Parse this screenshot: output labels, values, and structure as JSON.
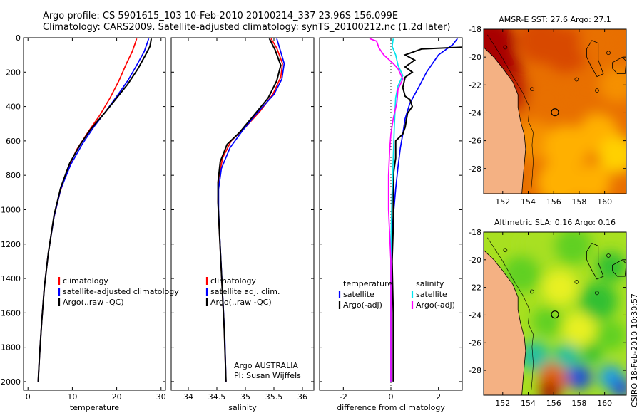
{
  "header": {
    "line1": "Argo profile: CS 5901615_103 10-Feb-2010 20100214_337 23.96S 156.099E",
    "line2": "Climatology: CARS2009. Satellite-adjusted climatology: synTS_20100212.nc (1.2d later)"
  },
  "side_credit": "CSIRO 18-Feb-2010 10:30:57",
  "colors": {
    "climatology": "#ff0000",
    "satellite": "#0000ff",
    "argo": "#000000",
    "cyan": "#00e5ee",
    "magenta": "#ff00ff",
    "land": "#f4b183"
  },
  "chart_data": [
    {
      "type": "line",
      "xlabel": "temperature",
      "xlim": [
        -1,
        31
      ],
      "ylim": [
        2050,
        0
      ],
      "xticks": [
        0,
        10,
        20,
        30
      ],
      "yticks": [
        0,
        200,
        400,
        600,
        800,
        1000,
        1200,
        1400,
        1600,
        1800,
        2000
      ],
      "legend": {
        "items": [
          "climatology",
          "satellite-adjusted climatology",
          "Argo(..raw -QC)"
        ]
      },
      "series": [
        {
          "name": "climatology",
          "color": "#ff0000",
          "points": [
            [
              24.5,
              5
            ],
            [
              24.2,
              30
            ],
            [
              23.5,
              80
            ],
            [
              22.2,
              150
            ],
            [
              20.5,
              250
            ],
            [
              18.5,
              350
            ],
            [
              16.2,
              450
            ],
            [
              13.5,
              550
            ],
            [
              11.0,
              650
            ],
            [
              9.0,
              760
            ],
            [
              7.2,
              900
            ],
            [
              5.8,
              1050
            ],
            [
              4.6,
              1250
            ],
            [
              3.7,
              1450
            ],
            [
              3.1,
              1650
            ],
            [
              2.6,
              1850
            ],
            [
              2.3,
              2000
            ]
          ]
        },
        {
          "name": "satellite-adjusted climatology",
          "color": "#0000ff",
          "points": [
            [
              27.2,
              5
            ],
            [
              26.9,
              30
            ],
            [
              26.2,
              80
            ],
            [
              24.5,
              160
            ],
            [
              22.5,
              250
            ],
            [
              20.3,
              330
            ],
            [
              17.5,
              430
            ],
            [
              14.8,
              520
            ],
            [
              12.2,
              620
            ],
            [
              9.6,
              740
            ],
            [
              7.4,
              880
            ],
            [
              5.9,
              1040
            ],
            [
              4.6,
              1250
            ],
            [
              3.7,
              1450
            ],
            [
              3.1,
              1650
            ],
            [
              2.6,
              1850
            ],
            [
              2.3,
              2000
            ]
          ]
        },
        {
          "name": "Argo(..raw -QC)",
          "color": "#000000",
          "points": [
            [
              27.8,
              5
            ],
            [
              27.7,
              20
            ],
            [
              27.5,
              50
            ],
            [
              26.5,
              100
            ],
            [
              24.8,
              180
            ],
            [
              22.5,
              270
            ],
            [
              20.0,
              350
            ],
            [
              17.2,
              440
            ],
            [
              14.2,
              530
            ],
            [
              11.8,
              620
            ],
            [
              9.4,
              730
            ],
            [
              7.4,
              870
            ],
            [
              5.9,
              1030
            ],
            [
              4.6,
              1250
            ],
            [
              3.7,
              1450
            ],
            [
              3.1,
              1650
            ],
            [
              2.6,
              1850
            ],
            [
              2.3,
              2000
            ]
          ]
        }
      ]
    },
    {
      "type": "line",
      "xlabel": "salinity",
      "xlim": [
        33.7,
        36.2
      ],
      "ylim": [
        2050,
        0
      ],
      "xticks": [
        34,
        34.5,
        35,
        35.5,
        36
      ],
      "legend": {
        "items": [
          "climatology",
          "satellite adj. clim.",
          "Argo(..raw -QC)"
        ]
      },
      "annotation": [
        "Argo AUSTRALIA",
        "PI: Susan Wijffels"
      ],
      "series": [
        {
          "name": "climatology",
          "color": "#ff0000",
          "points": [
            [
              35.45,
              5
            ],
            [
              35.55,
              60
            ],
            [
              35.65,
              150
            ],
            [
              35.62,
              230
            ],
            [
              35.48,
              330
            ],
            [
              35.25,
              430
            ],
            [
              35.0,
              520
            ],
            [
              34.75,
              600
            ],
            [
              34.6,
              700
            ],
            [
              34.53,
              820
            ],
            [
              34.52,
              950
            ],
            [
              34.54,
              1100
            ],
            [
              34.57,
              1300
            ],
            [
              34.6,
              1500
            ],
            [
              34.63,
              1700
            ],
            [
              34.65,
              1900
            ],
            [
              34.66,
              2000
            ]
          ]
        },
        {
          "name": "satellite adj. clim.",
          "color": "#0000ff",
          "points": [
            [
              35.55,
              5
            ],
            [
              35.6,
              60
            ],
            [
              35.68,
              150
            ],
            [
              35.64,
              240
            ],
            [
              35.5,
              330
            ],
            [
              35.2,
              440
            ],
            [
              34.95,
              540
            ],
            [
              34.73,
              640
            ],
            [
              34.58,
              760
            ],
            [
              34.53,
              880
            ],
            [
              34.53,
              1000
            ],
            [
              34.55,
              1150
            ],
            [
              34.58,
              1350
            ],
            [
              34.61,
              1550
            ],
            [
              34.64,
              1750
            ],
            [
              34.66,
              2000
            ]
          ]
        },
        {
          "name": "Argo(..raw -QC)",
          "color": "#000000",
          "points": [
            [
              35.42,
              5
            ],
            [
              35.52,
              70
            ],
            [
              35.62,
              160
            ],
            [
              35.55,
              250
            ],
            [
              35.4,
              350
            ],
            [
              35.15,
              450
            ],
            [
              34.9,
              550
            ],
            [
              34.68,
              620
            ],
            [
              34.56,
              720
            ],
            [
              34.52,
              840
            ],
            [
              34.52,
              960
            ],
            [
              34.54,
              1100
            ],
            [
              34.57,
              1300
            ],
            [
              34.6,
              1500
            ],
            [
              34.63,
              1700
            ],
            [
              34.65,
              1900
            ],
            [
              34.66,
              2000
            ]
          ]
        }
      ]
    },
    {
      "type": "line",
      "xlabel": "difference from climatology",
      "xlim": [
        -3,
        3
      ],
      "ylim": [
        2050,
        0
      ],
      "xticks": [
        -2,
        0,
        2
      ],
      "legend": {
        "groups": [
          {
            "title": "temperature",
            "items": [
              "satellite",
              "Argo(-adj)"
            ]
          },
          {
            "title": "salinity",
            "items": [
              "satellite",
              "Argo(-adj)"
            ]
          }
        ]
      },
      "series": [
        {
          "name": "temperature satellite",
          "color": "#0000ff",
          "points": [
            [
              2.8,
              5
            ],
            [
              2.6,
              40
            ],
            [
              2.0,
              100
            ],
            [
              1.5,
              200
            ],
            [
              1.2,
              280
            ],
            [
              0.8,
              380
            ],
            [
              0.6,
              470
            ],
            [
              0.5,
              560
            ],
            [
              0.4,
              640
            ],
            [
              0.3,
              750
            ],
            [
              0.2,
              880
            ],
            [
              0.1,
              1040
            ],
            [
              0,
              1250
            ],
            [
              0,
              2000
            ]
          ]
        },
        {
          "name": "temperature Argo(-adj)",
          "color": "#000000",
          "points": [
            [
              3,
              55
            ],
            [
              1.3,
              65
            ],
            [
              0.6,
              100
            ],
            [
              1.0,
              130
            ],
            [
              0.6,
              170
            ],
            [
              0.9,
              200
            ],
            [
              0.6,
              230
            ],
            [
              0.5,
              290
            ],
            [
              0.6,
              340
            ],
            [
              0.8,
              360
            ],
            [
              0.9,
              400
            ],
            [
              0.7,
              440
            ],
            [
              0.6,
              520
            ],
            [
              0.5,
              560
            ],
            [
              0.2,
              600
            ],
            [
              0.2,
              700
            ],
            [
              0.1,
              800
            ],
            [
              0.1,
              900
            ],
            [
              0.1,
              1100
            ],
            [
              0.05,
              1300
            ],
            [
              0.1,
              1600
            ],
            [
              0.1,
              2000
            ]
          ]
        },
        {
          "name": "salinity satellite",
          "color": "#00e5ee",
          "points": [
            [
              0.1,
              5
            ],
            [
              0.05,
              50
            ],
            [
              0.2,
              100
            ],
            [
              0.3,
              160
            ],
            [
              0.5,
              220
            ],
            [
              0.3,
              280
            ],
            [
              0.2,
              350
            ],
            [
              0.15,
              500
            ],
            [
              0.1,
              700
            ],
            [
              0.05,
              900
            ],
            [
              0,
              1200
            ],
            [
              0,
              1500
            ],
            [
              0,
              2000
            ]
          ]
        },
        {
          "name": "salinity Argo(-adj)",
          "color": "#ff00ff",
          "points": [
            [
              -0.9,
              5
            ],
            [
              -0.6,
              20
            ],
            [
              -0.5,
              60
            ],
            [
              -0.3,
              100
            ],
            [
              0.1,
              150
            ],
            [
              0.3,
              180
            ],
            [
              0.5,
              240
            ],
            [
              0.3,
              300
            ],
            [
              0.25,
              380
            ],
            [
              0.1,
              470
            ],
            [
              0.0,
              560
            ],
            [
              -0.05,
              650
            ],
            [
              -0.1,
              800
            ],
            [
              -0.1,
              1000
            ],
            [
              0,
              1300
            ],
            [
              0,
              2000
            ]
          ]
        }
      ]
    },
    {
      "type": "heatmap",
      "title": "AMSR-E SST: 27.6 Argo: 27.1",
      "xlim": [
        150.5,
        161.7
      ],
      "ylim": [
        -29.8,
        -18
      ],
      "xticks": [
        152,
        154,
        156,
        158,
        160
      ],
      "yticks": [
        -18,
        -20,
        -22,
        -24,
        -26,
        -28
      ],
      "argo_position": [
        156.1,
        -23.96
      ],
      "palette": [
        "#ffd000",
        "#ffb000",
        "#f59000",
        "#e86f00",
        "#d84a00",
        "#c02000",
        "#a80000"
      ],
      "blobs": [
        [
          151,
          -19,
          6,
          2.0
        ],
        [
          151.5,
          -21,
          6,
          2.0
        ],
        [
          152.5,
          -22.5,
          5,
          1.6
        ],
        [
          155,
          -18.8,
          4,
          1.8
        ],
        [
          157,
          -19.5,
          4,
          1.8
        ],
        [
          159.5,
          -19,
          3,
          1.5
        ],
        [
          155.5,
          -23,
          3,
          1.6
        ],
        [
          158.5,
          -22.5,
          3,
          1.5
        ],
        [
          161,
          -22,
          2,
          1.4
        ],
        [
          154.5,
          -26,
          2,
          1.6
        ],
        [
          157,
          -26.5,
          1,
          1.8
        ],
        [
          159.5,
          -25.5,
          1,
          1.6
        ],
        [
          161,
          -27,
          0,
          1.5
        ],
        [
          156.5,
          -29,
          1,
          1.8
        ],
        [
          159,
          -29,
          1,
          1.5
        ]
      ]
    },
    {
      "type": "heatmap",
      "title": "Altimetric SLA: 0.16 Argo: 0.16",
      "xlim": [
        150.5,
        161.7
      ],
      "ylim": [
        -29.8,
        -18
      ],
      "xticks": [
        152,
        154,
        156,
        158,
        160
      ],
      "yticks": [
        -18,
        -20,
        -22,
        -24,
        -26,
        -28
      ],
      "argo_position": [
        156.1,
        -23.96
      ],
      "palette": [
        "#1f4fd8",
        "#20a0e0",
        "#20c0a0",
        "#30c030",
        "#60d020",
        "#a8e020",
        "#e8f020",
        "#ffc000",
        "#e06000",
        "#a00000"
      ],
      "blobs": [
        [
          155,
          -19,
          5,
          1.8
        ],
        [
          157.5,
          -19,
          4,
          1.5
        ],
        [
          160.5,
          -20.5,
          3,
          1.2
        ],
        [
          153.5,
          -21,
          4,
          1.5
        ],
        [
          156.5,
          -22,
          6,
          1.4
        ],
        [
          159.5,
          -23,
          3,
          1.5
        ],
        [
          155.5,
          -24.5,
          4,
          1.2
        ],
        [
          158,
          -25,
          6,
          1.3
        ],
        [
          160.5,
          -25.5,
          4,
          1.2
        ],
        [
          154.5,
          -27,
          2,
          1.2
        ],
        [
          156,
          -28.5,
          8,
          1.2
        ],
        [
          158,
          -28.5,
          0,
          1.0
        ],
        [
          160.5,
          -28.5,
          1,
          1.0
        ],
        [
          157,
          -27,
          2,
          1.0
        ],
        [
          161.3,
          -29.3,
          0,
          0.8
        ],
        [
          155.7,
          -29.6,
          9,
          0.8
        ],
        [
          159,
          -26.8,
          3,
          0.8
        ]
      ]
    }
  ]
}
